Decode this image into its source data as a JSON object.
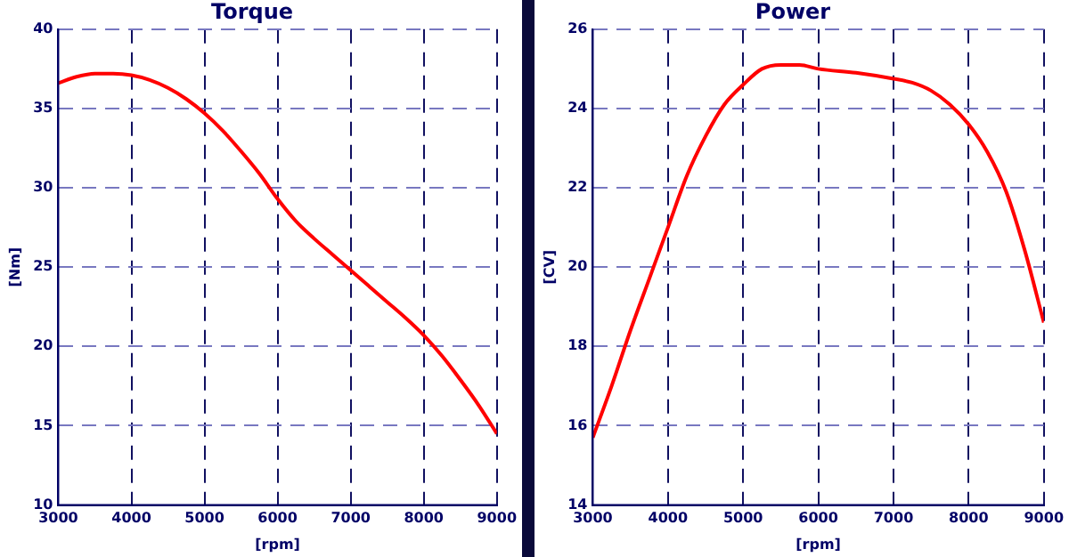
{
  "chart_data": [
    {
      "type": "line",
      "title": "Torque",
      "xlabel": "[rpm]",
      "ylabel": "[Nm]",
      "x": [
        3000,
        3250,
        3500,
        3750,
        4000,
        4250,
        4500,
        4750,
        5000,
        5250,
        5500,
        5750,
        6000,
        6250,
        6500,
        6750,
        7000,
        7250,
        7500,
        7750,
        8000,
        8250,
        8500,
        8750,
        9000
      ],
      "series": [
        {
          "color": "#ff0000",
          "values": [
            36.6,
            37.0,
            37.2,
            37.2,
            37.1,
            36.8,
            36.3,
            35.6,
            34.7,
            33.6,
            32.3,
            30.9,
            29.3,
            27.9,
            26.8,
            25.8,
            24.8,
            23.8,
            22.8,
            21.8,
            20.7,
            19.4,
            17.9,
            16.3,
            14.5
          ]
        }
      ],
      "xlim": [
        3000,
        9000
      ],
      "xticks": [
        3000,
        4000,
        5000,
        6000,
        7000,
        8000,
        9000
      ],
      "ylim": [
        10,
        40
      ],
      "yticks": [
        10,
        15,
        20,
        25,
        30,
        35,
        40
      ],
      "grid": true,
      "legend": false,
      "marker": "none",
      "line_style": "solid"
    },
    {
      "type": "line",
      "title": "Power",
      "xlabel": "[rpm]",
      "ylabel": "[CV]",
      "x": [
        3000,
        3250,
        3500,
        3750,
        4000,
        4250,
        4500,
        4750,
        5000,
        5250,
        5500,
        5750,
        6000,
        6500,
        7000,
        7250,
        7500,
        7750,
        8000,
        8250,
        8500,
        8750,
        9000
      ],
      "series": [
        {
          "color": "#ff0000",
          "values": [
            15.7,
            17.0,
            18.4,
            19.7,
            21.0,
            22.3,
            23.3,
            24.1,
            24.6,
            25.0,
            25.1,
            25.1,
            25.0,
            24.9,
            24.75,
            24.65,
            24.45,
            24.1,
            23.6,
            22.9,
            21.9,
            20.4,
            18.6
          ]
        }
      ],
      "xlim": [
        3000,
        9000
      ],
      "xticks": [
        3000,
        4000,
        5000,
        6000,
        7000,
        8000,
        9000
      ],
      "ylim": [
        14,
        26
      ],
      "yticks": [
        14,
        16,
        18,
        20,
        22,
        24,
        26
      ],
      "grid": true,
      "legend": false,
      "marker": "none",
      "line_style": "solid"
    }
  ]
}
